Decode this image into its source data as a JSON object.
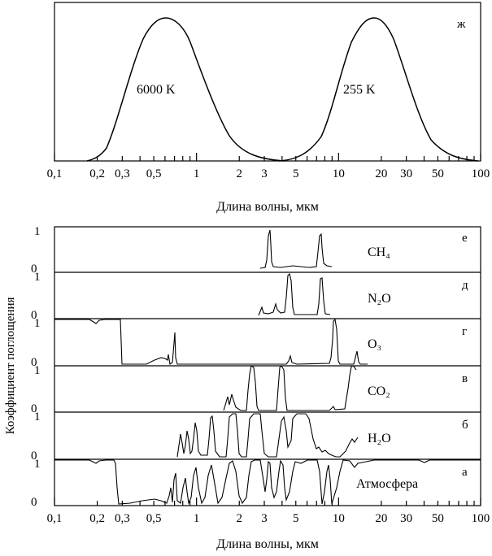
{
  "chart_data": [
    {
      "type": "line",
      "panel_label": "ж",
      "xscale": "log",
      "xlim": [
        0.1,
        100
      ],
      "xticks": [
        "0,1",
        "0,2",
        "0,3",
        "0,5",
        "1",
        "2",
        "3",
        "5",
        "10",
        "20",
        "30",
        "50",
        "100"
      ],
      "xlabel": "Длина волны, мкм",
      "ylabel": "",
      "series": [
        {
          "name": "6000 K",
          "peak_x": 0.55,
          "x": [
            0.15,
            0.2,
            0.3,
            0.4,
            0.55,
            0.7,
            1.0,
            1.5,
            2.0,
            3.0,
            4.0,
            5.0
          ],
          "y": [
            0.0,
            0.04,
            0.45,
            0.85,
            1.0,
            0.92,
            0.6,
            0.25,
            0.12,
            0.04,
            0.01,
            0.0
          ]
        },
        {
          "name": "255 K",
          "peak_x": 14,
          "x": [
            3.0,
            4.0,
            5.0,
            7.0,
            10,
            14,
            20,
            30,
            50,
            70,
            100
          ],
          "y": [
            0.0,
            0.01,
            0.04,
            0.25,
            0.75,
            1.0,
            0.9,
            0.55,
            0.15,
            0.06,
            0.0
          ]
        }
      ]
    },
    {
      "type": "line",
      "xscale": "log",
      "xlim": [
        0.1,
        100
      ],
      "xticks": [
        "0,1",
        "0,2",
        "0,3",
        "0,5",
        "1",
        "2",
        "3",
        "5",
        "10",
        "20",
        "30",
        "50",
        "100"
      ],
      "xlabel": "Длина волны, мкм",
      "ylabel": "Коэффициент поглощения",
      "panels": [
        {
          "label": "е",
          "gas": "CH₄",
          "y_ticks": [
            "1",
            "0"
          ],
          "peaks_um": [
            3.3,
            7.7
          ]
        },
        {
          "label": "д",
          "gas": "N₂O",
          "y_ticks": [
            "1",
            "0"
          ],
          "peaks_um": [
            4.5,
            7.8
          ]
        },
        {
          "label": "г",
          "gas": "O₃",
          "y_ticks": [
            "1",
            "0"
          ],
          "peaks_um": [
            0.29,
            0.76,
            4.7,
            9.6,
            14
          ]
        },
        {
          "label": "в",
          "gas": "CO₂",
          "y_ticks": [
            "1",
            "0"
          ],
          "peaks_um": [
            2.0,
            2.7,
            4.3,
            15
          ]
        },
        {
          "label": "б",
          "gas": "H₂O",
          "y_ticks": [
            "1",
            "0"
          ],
          "peaks_um": [
            0.94,
            1.1,
            1.4,
            1.9,
            2.7,
            6.3
          ]
        },
        {
          "label": "а",
          "gas": "Атмосфера",
          "y_ticks": [
            "1",
            "0"
          ],
          "peaks_um": [
            0.2,
            0.76,
            0.94,
            1.1,
            1.4,
            1.9,
            2.7,
            3.3,
            4.3,
            4.7,
            9.6,
            15
          ]
        }
      ]
    }
  ],
  "top": {
    "label_6000": "6000 K",
    "label_255": "255 K",
    "panel": "ж",
    "xlabel": "Длина волны, мкм"
  },
  "bottom": {
    "ylabel": "Коэффициент поглощения",
    "xlabel": "Длина волны, мкм"
  }
}
